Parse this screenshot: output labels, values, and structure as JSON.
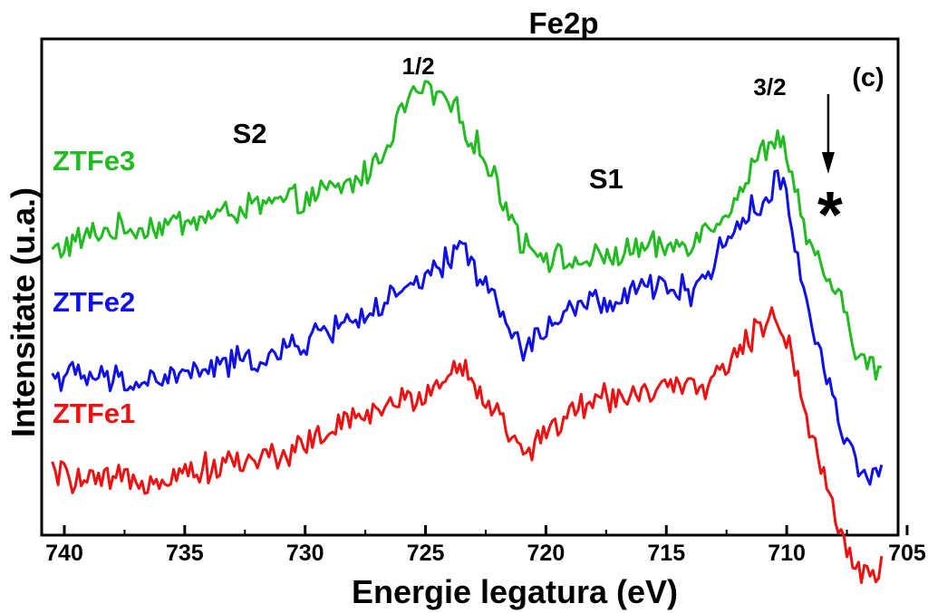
{
  "chart_data": {
    "type": "line",
    "title": "Fe2p",
    "panel_label": "(c)",
    "xlabel": "Energie legatura (eV)",
    "ylabel": "Intensitate (u.a.)",
    "xlim": [
      740.5,
      705.5
    ],
    "x_reversed": true,
    "y_ticks_shown": false,
    "x_ticks": [
      "740",
      "735",
      "730",
      "725",
      "720",
      "715",
      "710",
      "705"
    ],
    "grid": false,
    "series_labels_position": "left, inline",
    "annotations": [
      {
        "text": "1/2",
        "x": 725.3
      },
      {
        "text": "3/2",
        "x": 710.7
      },
      {
        "text": "S2",
        "x": 732.3
      },
      {
        "text": "S1",
        "x": 717.5
      },
      {
        "text": "*",
        "x": 708.2,
        "arrow": true
      }
    ],
    "series": [
      {
        "name": "ZTFe3",
        "color": "#22bb22",
        "x": [
          740.5,
          738.5,
          736,
          734,
          732,
          730,
          728,
          727,
          726,
          725.5,
          725,
          724.5,
          724,
          723,
          722,
          721,
          720,
          719,
          718,
          717,
          716,
          715,
          714,
          713,
          712,
          711,
          710.5,
          710,
          709.5,
          709,
          708.5,
          708,
          707.5,
          707,
          706.5,
          706
        ],
        "y": [
          0.83,
          0.9,
          0.92,
          0.95,
          0.99,
          1.01,
          1.07,
          1.14,
          1.32,
          1.38,
          1.4,
          1.37,
          1.35,
          1.22,
          1.06,
          0.87,
          0.82,
          0.79,
          0.8,
          0.82,
          0.84,
          0.84,
          0.87,
          0.93,
          1.03,
          1.18,
          1.23,
          1.18,
          1.0,
          0.82,
          0.76,
          0.7,
          0.58,
          0.47,
          0.42,
          0.42
        ]
      },
      {
        "name": "ZTFe2",
        "color": "#1010e8",
        "x": [
          740.5,
          739,
          737,
          735,
          733,
          731,
          729,
          727,
          725,
          724,
          723.5,
          723,
          722.5,
          722,
          721.5,
          721,
          720.5,
          720,
          719,
          718,
          717,
          716,
          715,
          714,
          713,
          712,
          711,
          710.5,
          710,
          709.5,
          709,
          708.5,
          708,
          707.5,
          707,
          706.5,
          706
        ],
        "y": [
          0.4,
          0.39,
          0.37,
          0.4,
          0.44,
          0.47,
          0.56,
          0.63,
          0.73,
          0.8,
          0.86,
          0.78,
          0.72,
          0.63,
          0.56,
          0.48,
          0.52,
          0.56,
          0.62,
          0.66,
          0.64,
          0.7,
          0.72,
          0.68,
          0.8,
          0.93,
          1.0,
          1.08,
          1.02,
          0.78,
          0.6,
          0.44,
          0.3,
          0.16,
          0.08,
          0.04,
          0.06
        ]
      },
      {
        "name": "ZTFe1",
        "color": "#ee1111",
        "x": [
          740.5,
          739,
          737,
          735,
          733,
          731,
          729,
          727,
          725,
          724,
          723.5,
          723,
          722.5,
          722,
          721.5,
          721,
          720.5,
          720,
          719,
          718,
          717,
          716,
          715,
          714,
          713,
          712,
          711,
          710.5,
          710,
          709.5,
          709,
          708.5,
          708,
          707.5,
          707,
          706.5,
          706
        ],
        "y": [
          0.06,
          0.02,
          0.03,
          0.06,
          0.09,
          0.12,
          0.2,
          0.28,
          0.33,
          0.41,
          0.43,
          0.37,
          0.32,
          0.26,
          0.19,
          0.11,
          0.16,
          0.2,
          0.26,
          0.31,
          0.33,
          0.34,
          0.35,
          0.34,
          0.39,
          0.48,
          0.57,
          0.62,
          0.53,
          0.38,
          0.2,
          0.05,
          -0.08,
          -0.2,
          -0.28,
          -0.3,
          -0.28
        ]
      }
    ]
  }
}
